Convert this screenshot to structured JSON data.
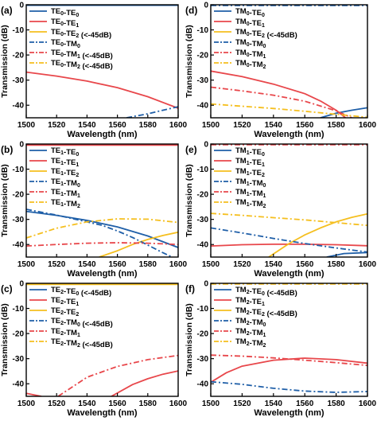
{
  "colors": {
    "blue": "#1f5fa8",
    "red": "#e8474b",
    "yellow": "#f5bf1f",
    "axis": "#000000"
  },
  "chart_data": [
    {
      "type": "line",
      "panel_label": "(a)",
      "xlabel": "Wavelength (nm)",
      "ylabel": "Transmission (dB)",
      "xlim": [
        1500,
        1600
      ],
      "ylim": [
        -45,
        0
      ],
      "xticks": [
        "1500",
        "1520",
        "1540",
        "1560",
        "1580",
        "1600"
      ],
      "yticks": [
        "0",
        "-10",
        "-20",
        "-30",
        "-40"
      ],
      "legend_position": "top-right",
      "series": [
        {
          "name": "TE₀-TE₀",
          "legend": [
            "TE",
            "0",
            "-TE",
            "0",
            ""
          ],
          "color": "blue",
          "style": "solid",
          "x": [
            1500,
            1600
          ],
          "y": [
            -0.2,
            -0.2
          ]
        },
        {
          "name": "TE₀-TE₁",
          "legend": [
            "TE",
            "0",
            "-TE",
            "1",
            ""
          ],
          "color": "red",
          "style": "solid",
          "x": [
            1500,
            1520,
            1540,
            1560,
            1580,
            1600
          ],
          "y": [
            -26.8,
            -28.4,
            -30.4,
            -33.0,
            -36.6,
            -41.2
          ]
        },
        {
          "name": "TE₀-TE₂ (<-45dB)",
          "legend": [
            "TE",
            "0",
            "-TE",
            "2",
            " (<-45dB)"
          ],
          "color": "yellow",
          "style": "solid",
          "x": [],
          "y": []
        },
        {
          "name": "TE₀-TM₀",
          "legend": [
            "TE",
            "0",
            "-TM",
            "0",
            ""
          ],
          "color": "blue",
          "style": "dashdot",
          "x": [
            1566,
            1580,
            1590,
            1600
          ],
          "y": [
            -45,
            -43.4,
            -42.0,
            -40.6
          ]
        },
        {
          "name": "TE₀-TM₁ (<-45dB)",
          "legend": [
            "TE",
            "0",
            "-TM",
            "1",
            " (<-45dB)"
          ],
          "color": "red",
          "style": "dashdot",
          "x": [],
          "y": []
        },
        {
          "name": "TE₀-TM₂ (<-45dB)",
          "legend": [
            "TE",
            "0",
            "-TM",
            "2",
            " (<-45dB)"
          ],
          "color": "yellow",
          "style": "dashdot",
          "x": [],
          "y": []
        }
      ]
    },
    {
      "type": "line",
      "panel_label": "(b)",
      "xlabel": "Wavelength (nm)",
      "ylabel": "Transmission (dB)",
      "xlim": [
        1500,
        1600
      ],
      "ylim": [
        -45,
        0
      ],
      "xticks": [
        "1500",
        "1520",
        "1540",
        "1560",
        "1580",
        "1600"
      ],
      "yticks": [
        "0",
        "-10",
        "-20",
        "-30",
        "-40"
      ],
      "legend_position": "top-right",
      "series": [
        {
          "name": "TE₁-TE₀",
          "legend": [
            "TE",
            "1",
            "-TE",
            "0",
            ""
          ],
          "color": "blue",
          "style": "solid",
          "x": [
            1500,
            1520,
            1540,
            1560,
            1580,
            1600
          ],
          "y": [
            -26.8,
            -28.4,
            -30.4,
            -33.0,
            -36.6,
            -41.2
          ]
        },
        {
          "name": "TE₁-TE₁",
          "legend": [
            "TE",
            "1",
            "-TE",
            "1",
            ""
          ],
          "color": "red",
          "style": "solid",
          "x": [
            1500,
            1600
          ],
          "y": [
            -0.4,
            -0.4
          ]
        },
        {
          "name": "TE₁-TE₂",
          "legend": [
            "TE",
            "1",
            "-TE",
            "2",
            ""
          ],
          "color": "yellow",
          "style": "solid",
          "x": [
            1548,
            1560,
            1570,
            1580,
            1590,
            1600
          ],
          "y": [
            -45,
            -42.5,
            -40.0,
            -38.0,
            -36.4,
            -35.1
          ]
        },
        {
          "name": "TE₁-TM₀",
          "legend": [
            "TE",
            "1",
            "-TM",
            "0",
            ""
          ],
          "color": "blue",
          "style": "dashdot",
          "x": [
            1500,
            1520,
            1540,
            1550,
            1560,
            1570,
            1580,
            1590,
            1596
          ],
          "y": [
            -26.0,
            -28.3,
            -31.0,
            -32.4,
            -34.6,
            -37.2,
            -40.2,
            -43.3,
            -45
          ]
        },
        {
          "name": "TE₁-TM₁",
          "legend": [
            "TE",
            "1",
            "-TM",
            "1",
            ""
          ],
          "color": "red",
          "style": "dashdot",
          "x": [
            1500,
            1520,
            1540,
            1560,
            1580,
            1600
          ],
          "y": [
            -40.6,
            -40.0,
            -39.5,
            -39.3,
            -39.5,
            -40.0
          ]
        },
        {
          "name": "TE₁-TM₂",
          "legend": [
            "TE",
            "1",
            "-TM",
            "2",
            ""
          ],
          "color": "yellow",
          "style": "dashdot",
          "x": [
            1500,
            1520,
            1540,
            1560,
            1580,
            1600
          ],
          "y": [
            -37.4,
            -33.5,
            -31.0,
            -29.8,
            -29.9,
            -31.2
          ]
        }
      ]
    },
    {
      "type": "line",
      "panel_label": "(c)",
      "xlabel": "Wavelength (nm)",
      "ylabel": "Transmission (dB)",
      "xlim": [
        1500,
        1600
      ],
      "ylim": [
        -45,
        0
      ],
      "xticks": [
        "1500",
        "1520",
        "1540",
        "1560",
        "1580",
        "1600"
      ],
      "yticks": [
        "0",
        "-10",
        "-20",
        "-30",
        "-40"
      ],
      "legend_position": "top-right",
      "series": [
        {
          "name": "TE₂-TE₀ (<-45dB)",
          "legend": [
            "TE",
            "2",
            "-TE",
            "0",
            " (<-45dB)"
          ],
          "color": "blue",
          "style": "solid",
          "x": [],
          "y": []
        },
        {
          "name": "TE₂-TE₁",
          "legend": [
            "TE",
            "2",
            "-TE",
            "1",
            ""
          ],
          "color": "red",
          "style": "solid",
          "x": [
            1500,
            1505,
            1510
          ],
          "y": [
            -43.8,
            -44.4,
            -45
          ]
        },
        {
          "name": "TE₂-TE₂",
          "legend": [
            "TE",
            "2",
            "-TE",
            "2",
            ""
          ],
          "color": "yellow",
          "style": "solid",
          "x": [
            1500,
            1600
          ],
          "y": [
            -0.4,
            -0.4
          ]
        },
        {
          "name": "TE₂-TM₀ (<-45dB)",
          "legend": [
            "TE",
            "2",
            "-TM",
            "0",
            " (<-45dB)"
          ],
          "color": "blue",
          "style": "dashdot",
          "x": [],
          "y": []
        },
        {
          "name": "TE₂-TM₁",
          "legend": [
            "TE",
            "2",
            "-TM",
            "1",
            ""
          ],
          "color": "red",
          "style": "dashdot",
          "x": [
            1521,
            1540,
            1560,
            1580,
            1600
          ],
          "y": [
            -45,
            -37.4,
            -33.1,
            -30.4,
            -28.7
          ]
        },
        {
          "name": "TE₂-TM₂ (<-45dB)",
          "legend": [
            "TE",
            "2",
            "-TM",
            "2",
            " (<-45dB)"
          ],
          "color": "yellow",
          "style": "dashdot",
          "x": [],
          "y": []
        },
        {
          "name": "TE₂-TE₁ (rise)",
          "legend": null,
          "color": "red",
          "style": "solid",
          "x": [
            1556,
            1570,
            1580,
            1590,
            1600
          ],
          "y": [
            -45,
            -40.3,
            -38.0,
            -36.2,
            -34.9
          ]
        }
      ]
    },
    {
      "type": "line",
      "panel_label": "(d)",
      "xlabel": "Wavelength (nm)",
      "ylabel": "Transmission (dB)",
      "xlim": [
        1500,
        1600
      ],
      "ylim": [
        -45,
        0
      ],
      "xticks": [
        "1500",
        "1520",
        "1540",
        "1560",
        "1580",
        "1600"
      ],
      "yticks": [
        "0",
        "-10",
        "-20",
        "-30",
        "-40"
      ],
      "legend_position": "top-right",
      "series": [
        {
          "name": "TM₀-TE₀",
          "legend": [
            "TM",
            "0",
            "-TE",
            "0",
            ""
          ],
          "color": "blue",
          "style": "solid",
          "x": [
            1570,
            1580,
            1590,
            1600
          ],
          "y": [
            -45,
            -43.2,
            -42.0,
            -41.0
          ]
        },
        {
          "name": "TM₀-TE₁",
          "legend": [
            "TM",
            "0",
            "-TE",
            "1",
            ""
          ],
          "color": "red",
          "style": "solid",
          "x": [
            1500,
            1520,
            1540,
            1560,
            1570,
            1580,
            1586
          ],
          "y": [
            -26.4,
            -28.6,
            -31.6,
            -35.4,
            -38.3,
            -42.0,
            -45
          ]
        },
        {
          "name": "TM₀-TE₂ (<-45dB)",
          "legend": [
            "TM",
            "0",
            "-TE",
            "2",
            " (<-45dB)"
          ],
          "color": "yellow",
          "style": "solid",
          "x": [],
          "y": []
        },
        {
          "name": "TM₀-TM₀",
          "legend": [
            "TM",
            "0",
            "-TM",
            "0",
            ""
          ],
          "color": "blue",
          "style": "dashdot",
          "x": [
            1500,
            1600
          ],
          "y": [
            -0.3,
            -0.3
          ]
        },
        {
          "name": "TM₀-TM₁",
          "legend": [
            "TM",
            "0",
            "-TM",
            "1",
            ""
          ],
          "color": "red",
          "style": "dashdot",
          "x": [
            1500,
            1520,
            1540,
            1560,
            1580,
            1590
          ],
          "y": [
            -32.8,
            -34.3,
            -36.0,
            -38.4,
            -42.2,
            -45
          ]
        },
        {
          "name": "TM₀-TM₂",
          "legend": [
            "TM",
            "0",
            "-TM",
            "2",
            ""
          ],
          "color": "yellow",
          "style": "dashdot",
          "x": [
            1500,
            1520,
            1540,
            1560,
            1580,
            1600
          ],
          "y": [
            -39.5,
            -40.4,
            -41.3,
            -42.4,
            -43.6,
            -44.8
          ]
        }
      ]
    },
    {
      "type": "line",
      "panel_label": "(e)",
      "xlabel": "Wavelength (nm)",
      "ylabel": "Transmission (dB)",
      "xlim": [
        1500,
        1600
      ],
      "ylim": [
        -45,
        0
      ],
      "xticks": [
        "1500",
        "1520",
        "1540",
        "1560",
        "1580",
        "1600"
      ],
      "yticks": [
        "0",
        "-10",
        "-20",
        "-30",
        "-40"
      ],
      "legend_position": "top-right",
      "series": [
        {
          "name": "TM₁-TE₀",
          "legend": [
            "TM",
            "1",
            "-TE",
            "0",
            ""
          ],
          "color": "blue",
          "style": "solid",
          "x": [
            1574,
            1585,
            1600
          ],
          "y": [
            -45,
            -43.6,
            -43.2
          ]
        },
        {
          "name": "TM₁-TE₁",
          "legend": [
            "TM",
            "1",
            "-TE",
            "1",
            ""
          ],
          "color": "red",
          "style": "solid",
          "x": [
            1500,
            1520,
            1540,
            1560,
            1580,
            1600
          ],
          "y": [
            -40.6,
            -40.1,
            -39.9,
            -39.9,
            -40.1,
            -40.5
          ]
        },
        {
          "name": "TM₁-TE₂",
          "legend": [
            "TM",
            "1",
            "-TE",
            "2",
            ""
          ],
          "color": "yellow",
          "style": "solid",
          "x": [
            1537,
            1550,
            1560,
            1570,
            1580,
            1590,
            1600
          ],
          "y": [
            -45,
            -39.6,
            -36.2,
            -33.4,
            -31.0,
            -29.2,
            -27.8
          ]
        },
        {
          "name": "TM₁-TM₀",
          "legend": [
            "TM",
            "1",
            "-TM",
            "0",
            ""
          ],
          "color": "blue",
          "style": "dashdot",
          "x": [
            1500,
            1520,
            1540,
            1560,
            1580,
            1600
          ],
          "y": [
            -33.4,
            -35.4,
            -37.6,
            -39.6,
            -41.4,
            -43.0
          ]
        },
        {
          "name": "TM₁-TM₁",
          "legend": [
            "TM",
            "1",
            "-TM",
            "1",
            ""
          ],
          "color": "red",
          "style": "dashdot",
          "x": [
            1500,
            1600
          ],
          "y": [
            -0.3,
            -0.3
          ]
        },
        {
          "name": "TM₁-TM₂",
          "legend": [
            "TM",
            "1",
            "-TM",
            "2",
            ""
          ],
          "color": "yellow",
          "style": "dashdot",
          "x": [
            1500,
            1520,
            1540,
            1560,
            1580,
            1600
          ],
          "y": [
            -27.6,
            -28.4,
            -29.3,
            -30.2,
            -31.3,
            -32.4
          ]
        }
      ]
    },
    {
      "type": "line",
      "panel_label": "(f)",
      "xlabel": "Wavelength (nm)",
      "ylabel": "Transmission (dB)",
      "xlim": [
        1500,
        1600
      ],
      "ylim": [
        -45,
        0
      ],
      "xticks": [
        "1500",
        "1520",
        "1540",
        "1560",
        "1580",
        "1600"
      ],
      "yticks": [
        "0",
        "-10",
        "-20",
        "-30",
        "-40"
      ],
      "legend_position": "top-right",
      "series": [
        {
          "name": "TM₂-TE₀ (<-45dB)",
          "legend": [
            "TM",
            "2",
            "-TE",
            "0",
            " (<-45dB)"
          ],
          "color": "blue",
          "style": "solid",
          "x": [],
          "y": []
        },
        {
          "name": "TM₂-TE₁",
          "legend": [
            "TM",
            "2",
            "-TE",
            "1",
            ""
          ],
          "color": "red",
          "style": "solid",
          "x": [
            1500,
            1510,
            1520,
            1540,
            1560,
            1580,
            1600
          ],
          "y": [
            -39.4,
            -35.6,
            -33.0,
            -30.6,
            -29.8,
            -30.4,
            -31.8
          ]
        },
        {
          "name": "TM₂-TE₂ (<-45dB)",
          "legend": [
            "TM",
            "2",
            "-TE",
            "2",
            " (<-45dB)"
          ],
          "color": "yellow",
          "style": "solid",
          "x": [],
          "y": []
        },
        {
          "name": "TM₂-TM₀",
          "legend": [
            "TM",
            "2",
            "-TM",
            "0",
            ""
          ],
          "color": "blue",
          "style": "dashdot",
          "x": [
            1500,
            1520,
            1540,
            1560,
            1580,
            1600
          ],
          "y": [
            -39.2,
            -40.2,
            -41.8,
            -42.9,
            -43.4,
            -43.1
          ]
        },
        {
          "name": "TM₂-TM₁",
          "legend": [
            "TM",
            "2",
            "-TM",
            "1",
            ""
          ],
          "color": "red",
          "style": "dashdot",
          "x": [
            1500,
            1520,
            1540,
            1560,
            1580,
            1600
          ],
          "y": [
            -28.6,
            -29.0,
            -29.7,
            -30.6,
            -31.6,
            -32.7
          ]
        },
        {
          "name": "TM₂-TM₂",
          "legend": [
            "TM",
            "2",
            "-TM",
            "2",
            ""
          ],
          "color": "yellow",
          "style": "dashdot",
          "x": [
            1500,
            1600
          ],
          "y": [
            -0.3,
            -0.3
          ]
        }
      ]
    }
  ]
}
